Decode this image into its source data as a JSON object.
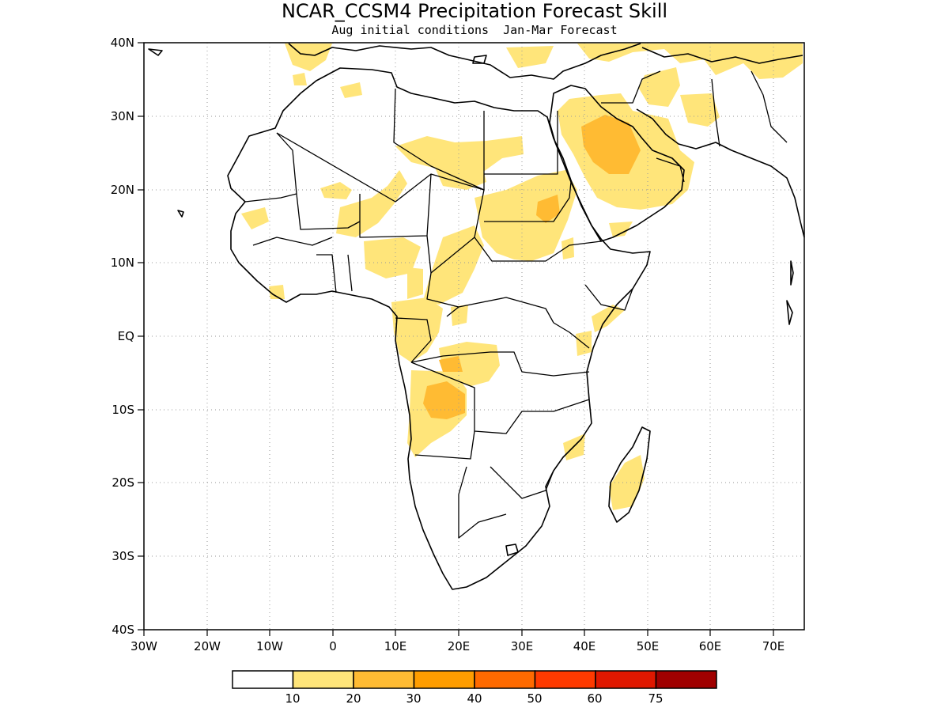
{
  "title": "NCAR_CCSM4 Precipitation Forecast Skill",
  "subtitle": "Aug initial conditions  Jan-Mar Forecast",
  "map": {
    "lon_range": [
      -30,
      75
    ],
    "lat_range": [
      -40,
      40
    ],
    "grid": true,
    "lat_ticks": [
      {
        "value": 40,
        "label": "40N"
      },
      {
        "value": 30,
        "label": "30N"
      },
      {
        "value": 20,
        "label": "20N"
      },
      {
        "value": 10,
        "label": "10N"
      },
      {
        "value": 0,
        "label": "EQ"
      },
      {
        "value": -10,
        "label": "10S"
      },
      {
        "value": -20,
        "label": "20S"
      },
      {
        "value": -30,
        "label": "30S"
      },
      {
        "value": -40,
        "label": "40S"
      }
    ],
    "lon_ticks": [
      {
        "value": -30,
        "label": "30W"
      },
      {
        "value": -20,
        "label": "20W"
      },
      {
        "value": -10,
        "label": "10W"
      },
      {
        "value": 0,
        "label": "0"
      },
      {
        "value": 10,
        "label": "10E"
      },
      {
        "value": 20,
        "label": "20E"
      },
      {
        "value": 30,
        "label": "30E"
      },
      {
        "value": 40,
        "label": "40E"
      },
      {
        "value": 50,
        "label": "50E"
      },
      {
        "value": 60,
        "label": "60E"
      },
      {
        "value": 70,
        "label": "70E"
      }
    ]
  },
  "colorbar": {
    "colors": [
      "#ffffff",
      "#ffe57a",
      "#ffbb33",
      "#ff9d00",
      "#ff6a00",
      "#ff3a00",
      "#e01800",
      "#a00000"
    ],
    "labels": [
      "10",
      "20",
      "30",
      "40",
      "50",
      "60",
      "75"
    ]
  }
}
